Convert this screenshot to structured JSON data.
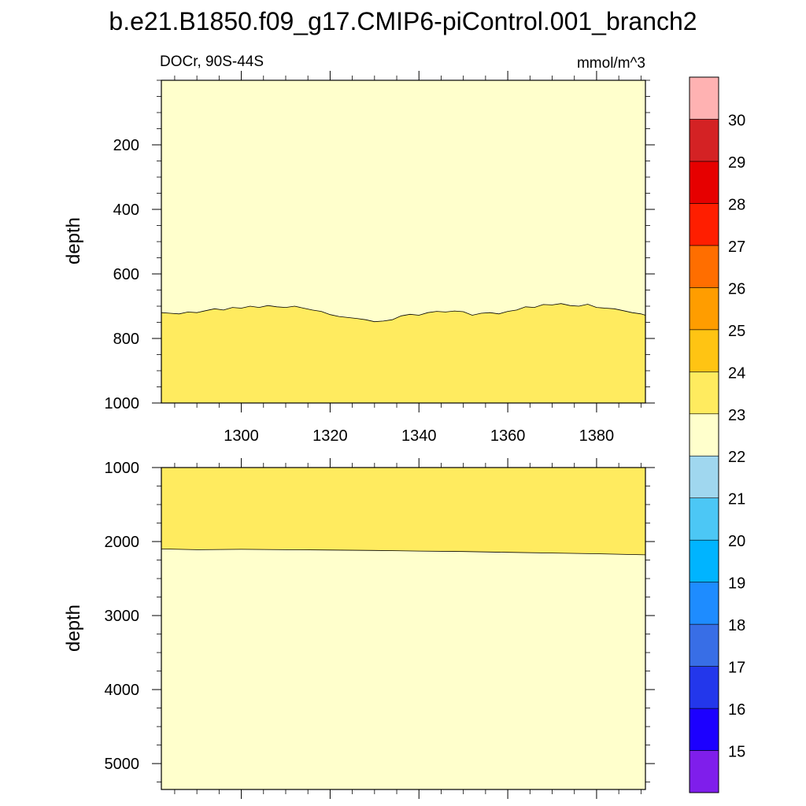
{
  "chart_data": {
    "type": "heatmap",
    "title": "b.e21.B1850.f09_g17.CMIP6-piControl.001_branch2",
    "variable_label": "DOCr, 90S-44S",
    "units_label": "mmol/m^3",
    "x_range": [
      1282,
      1391
    ],
    "x_ticks": [
      1300,
      1320,
      1340,
      1360,
      1380
    ],
    "colorbar": {
      "levels": [
        15,
        16,
        17,
        18,
        19,
        20,
        21,
        22,
        23,
        24,
        25,
        26,
        27,
        28,
        29,
        30
      ],
      "colors": [
        "#7f1eeb",
        "#1c00ff",
        "#2337eb",
        "#386ee6",
        "#1e8cff",
        "#00b4ff",
        "#4cc7f5",
        "#a0d7ef",
        "#ffffcc",
        "#ffeb5f",
        "#ffc413",
        "#ff9d00",
        "#ff6e00",
        "#ff1e00",
        "#e60000",
        "#d42224",
        "#ffb2b2"
      ]
    },
    "panels": [
      {
        "name": "upper",
        "ylabel": "depth",
        "ylim": [
          0,
          1000
        ],
        "y_ticks": [
          200,
          400,
          600,
          800,
          1000
        ],
        "shallow_band": "22-23",
        "deep_band": "23-24",
        "contour_23": {
          "x": [
            1282,
            1284,
            1286,
            1288,
            1290,
            1292,
            1294,
            1296,
            1298,
            1300,
            1302,
            1304,
            1306,
            1308,
            1310,
            1312,
            1314,
            1316,
            1318,
            1320,
            1322,
            1324,
            1326,
            1328,
            1330,
            1332,
            1334,
            1336,
            1338,
            1340,
            1342,
            1344,
            1346,
            1348,
            1350,
            1352,
            1354,
            1356,
            1358,
            1360,
            1362,
            1364,
            1366,
            1368,
            1370,
            1372,
            1374,
            1376,
            1378,
            1380,
            1382,
            1384,
            1386,
            1388,
            1390,
            1391
          ],
          "depth": [
            720,
            722,
            724,
            718,
            720,
            714,
            708,
            712,
            704,
            706,
            700,
            704,
            698,
            702,
            704,
            700,
            706,
            712,
            716,
            726,
            732,
            735,
            738,
            742,
            748,
            746,
            742,
            730,
            725,
            728,
            720,
            716,
            718,
            715,
            717,
            728,
            722,
            720,
            724,
            716,
            712,
            702,
            704,
            695,
            696,
            692,
            698,
            700,
            694,
            704,
            706,
            708,
            714,
            720,
            724,
            728
          ]
        }
      },
      {
        "name": "lower",
        "ylabel": "depth",
        "ylim": [
          1000,
          5350
        ],
        "y_ticks": [
          1000,
          2000,
          3000,
          4000,
          5000
        ],
        "shallow_band": "23-24",
        "deep_band": "22-23",
        "contour_23": {
          "x": [
            1282,
            1290,
            1300,
            1310,
            1320,
            1330,
            1340,
            1350,
            1360,
            1370,
            1380,
            1391
          ],
          "depth": [
            2100,
            2110,
            2105,
            2110,
            2115,
            2120,
            2128,
            2135,
            2145,
            2155,
            2165,
            2180
          ]
        }
      }
    ]
  }
}
